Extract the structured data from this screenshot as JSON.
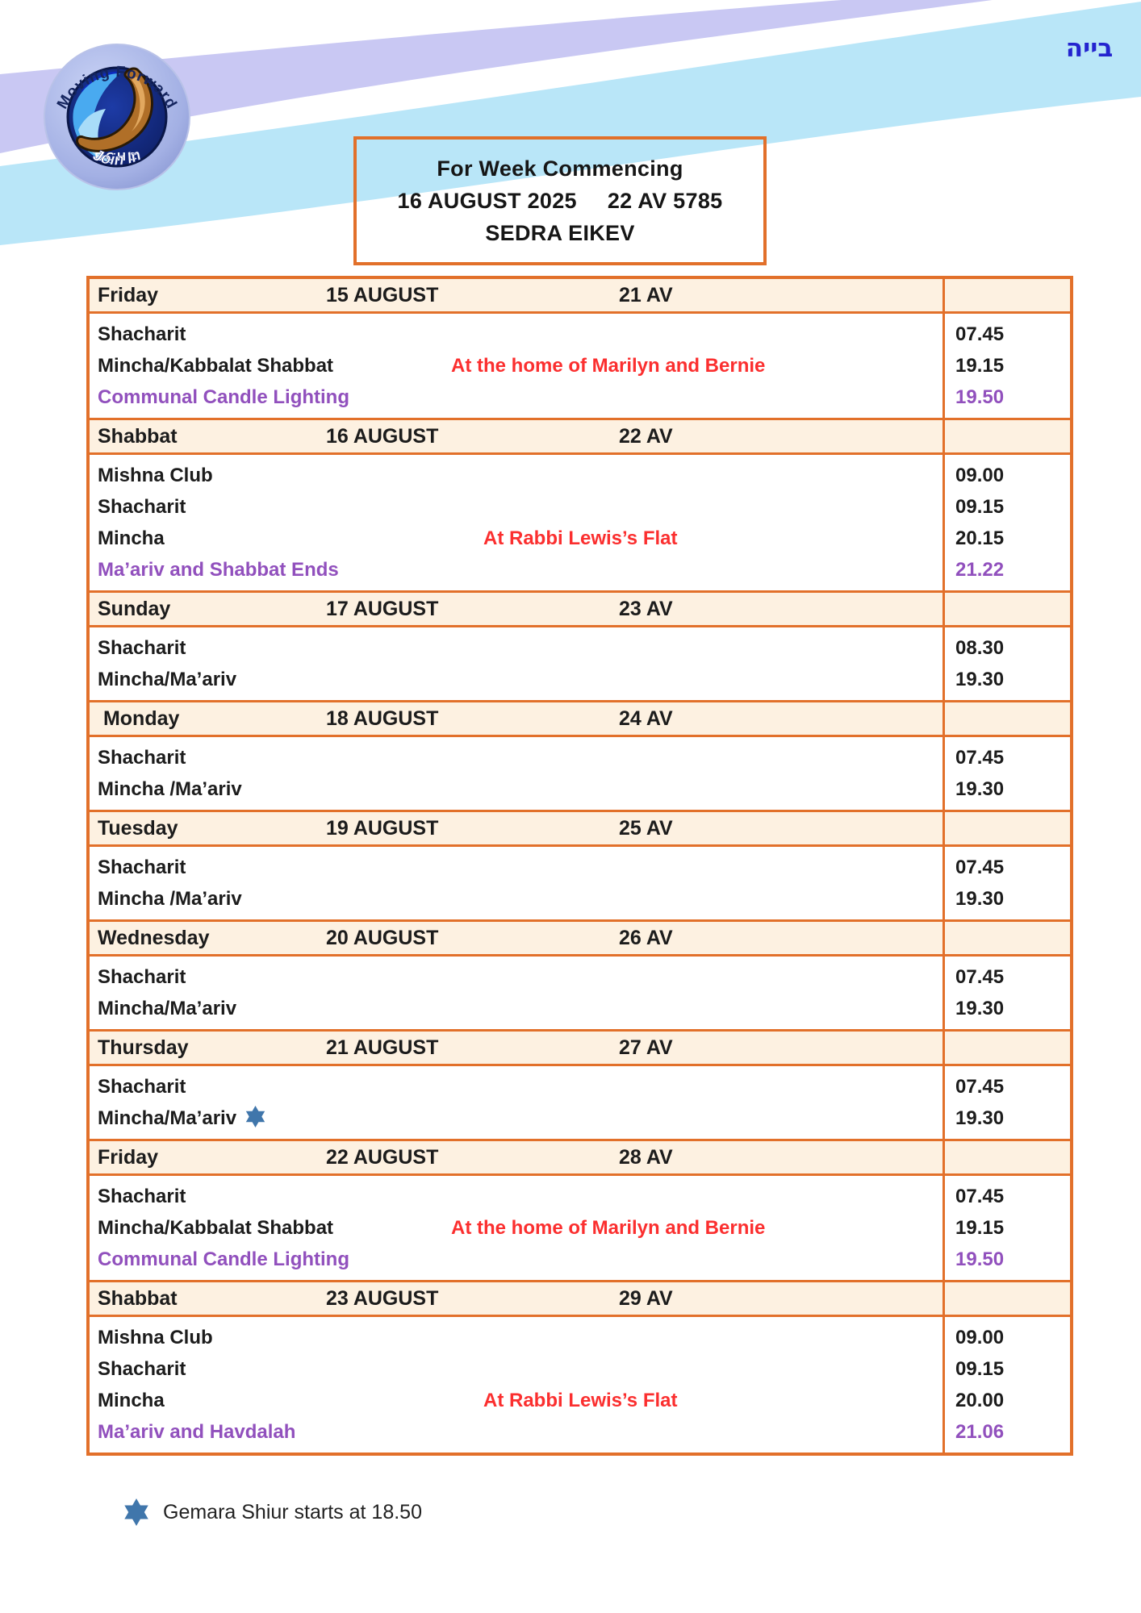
{
  "page": {
    "hebrew_blessing": "בייה"
  },
  "logo": {
    "arc_top": "Moving Forward",
    "acronym": "BCHC",
    "arc_bottom": "Join In"
  },
  "title_box": {
    "line1": "For Week Commencing",
    "date": "16 AUGUST 2025",
    "hebrew_date": "22 AV 5785",
    "sedra": "SEDRA EIKEV"
  },
  "colors": {
    "table_border_orange": "#e2702a",
    "header_cream": "#fdf1e1",
    "location_red": "#fb2f2f",
    "accent_purple": "#9150bd",
    "star_blue": "#4076ab",
    "wave_lavender": "#c9c8f3",
    "wave_cyan": "#b9e6f8",
    "hebrew_blue": "#2424cf"
  },
  "schedule": {
    "days": [
      {
        "day": "Friday",
        "date": "15 AUGUST",
        "av": "21 AV",
        "services": [
          {
            "name": "Shacharit",
            "time": "07.45"
          },
          {
            "name": "Mincha/Kabbalat Shabbat",
            "note": "At the home of Marilyn and Bernie",
            "time": "19.15"
          },
          {
            "name": "Communal Candle Lighting",
            "accent": "purple",
            "time": "19.50",
            "time_accent": "purple"
          }
        ]
      },
      {
        "day": "Shabbat",
        "date": "16 AUGUST",
        "av": "22 AV",
        "services": [
          {
            "name": "Mishna Club",
            "time": "09.00"
          },
          {
            "name": "Shacharit",
            "time": "09.15"
          },
          {
            "name": "Mincha",
            "note": "At Rabbi Lewis’s Flat",
            "time": "20.15"
          },
          {
            "name": "Ma’ariv and Shabbat Ends",
            "accent": "purple",
            "time": "21.22",
            "time_accent": "purple"
          }
        ]
      },
      {
        "day": "Sunday",
        "date": "17 AUGUST",
        "av": "23 AV",
        "services": [
          {
            "name": "Shacharit",
            "time": "08.30"
          },
          {
            "name": "Mincha/Ma’ariv",
            "time": "19.30"
          }
        ]
      },
      {
        "day": " Monday",
        "date": "18 AUGUST",
        "av": "24 AV",
        "services": [
          {
            "name": "Shacharit",
            "time": "07.45"
          },
          {
            "name": "Mincha /Ma’ariv",
            "time": "19.30"
          }
        ]
      },
      {
        "day": "Tuesday",
        "date": "19 AUGUST",
        "av": "25 AV",
        "services": [
          {
            "name": "Shacharit",
            "time": "07.45"
          },
          {
            "name": "Mincha /Ma’ariv",
            "time": "19.30"
          }
        ]
      },
      {
        "day": "Wednesday",
        "date": "20 AUGUST",
        "av": "26 AV",
        "services": [
          {
            "name": "Shacharit",
            "time": "07.45"
          },
          {
            "name": "Mincha/Ma’ariv",
            "time": "19.30"
          }
        ]
      },
      {
        "day": "Thursday",
        "date": "21 AUGUST",
        "av": "27 AV",
        "services": [
          {
            "name": "Shacharit",
            "time": "07.45"
          },
          {
            "name": "Mincha/Ma’ariv",
            "star": true,
            "time": "19.30"
          }
        ]
      },
      {
        "day": "Friday",
        "date": "22 AUGUST",
        "av": "28 AV",
        "services": [
          {
            "name": "Shacharit",
            "time": "07.45"
          },
          {
            "name": "Mincha/Kabbalat Shabbat",
            "note": "At the home of Marilyn and Bernie",
            "time": "19.15"
          },
          {
            "name": "Communal Candle Lighting",
            "accent": "purple",
            "time": "19.50",
            "time_accent": "purple"
          }
        ]
      },
      {
        "day": "Shabbat",
        "date": "23 AUGUST",
        "av": "29 AV",
        "services": [
          {
            "name": "Mishna Club",
            "time": "09.00"
          },
          {
            "name": "Shacharit",
            "time": "09.15"
          },
          {
            "name": "Mincha",
            "note": "At Rabbi Lewis’s Flat",
            "time": "20.00"
          },
          {
            "name": "Ma’ariv and Havdalah",
            "accent": "purple",
            "time": "21.06",
            "time_accent": "purple"
          }
        ]
      }
    ]
  },
  "footnote": {
    "text": "Gemara Shiur starts at 18.50"
  }
}
